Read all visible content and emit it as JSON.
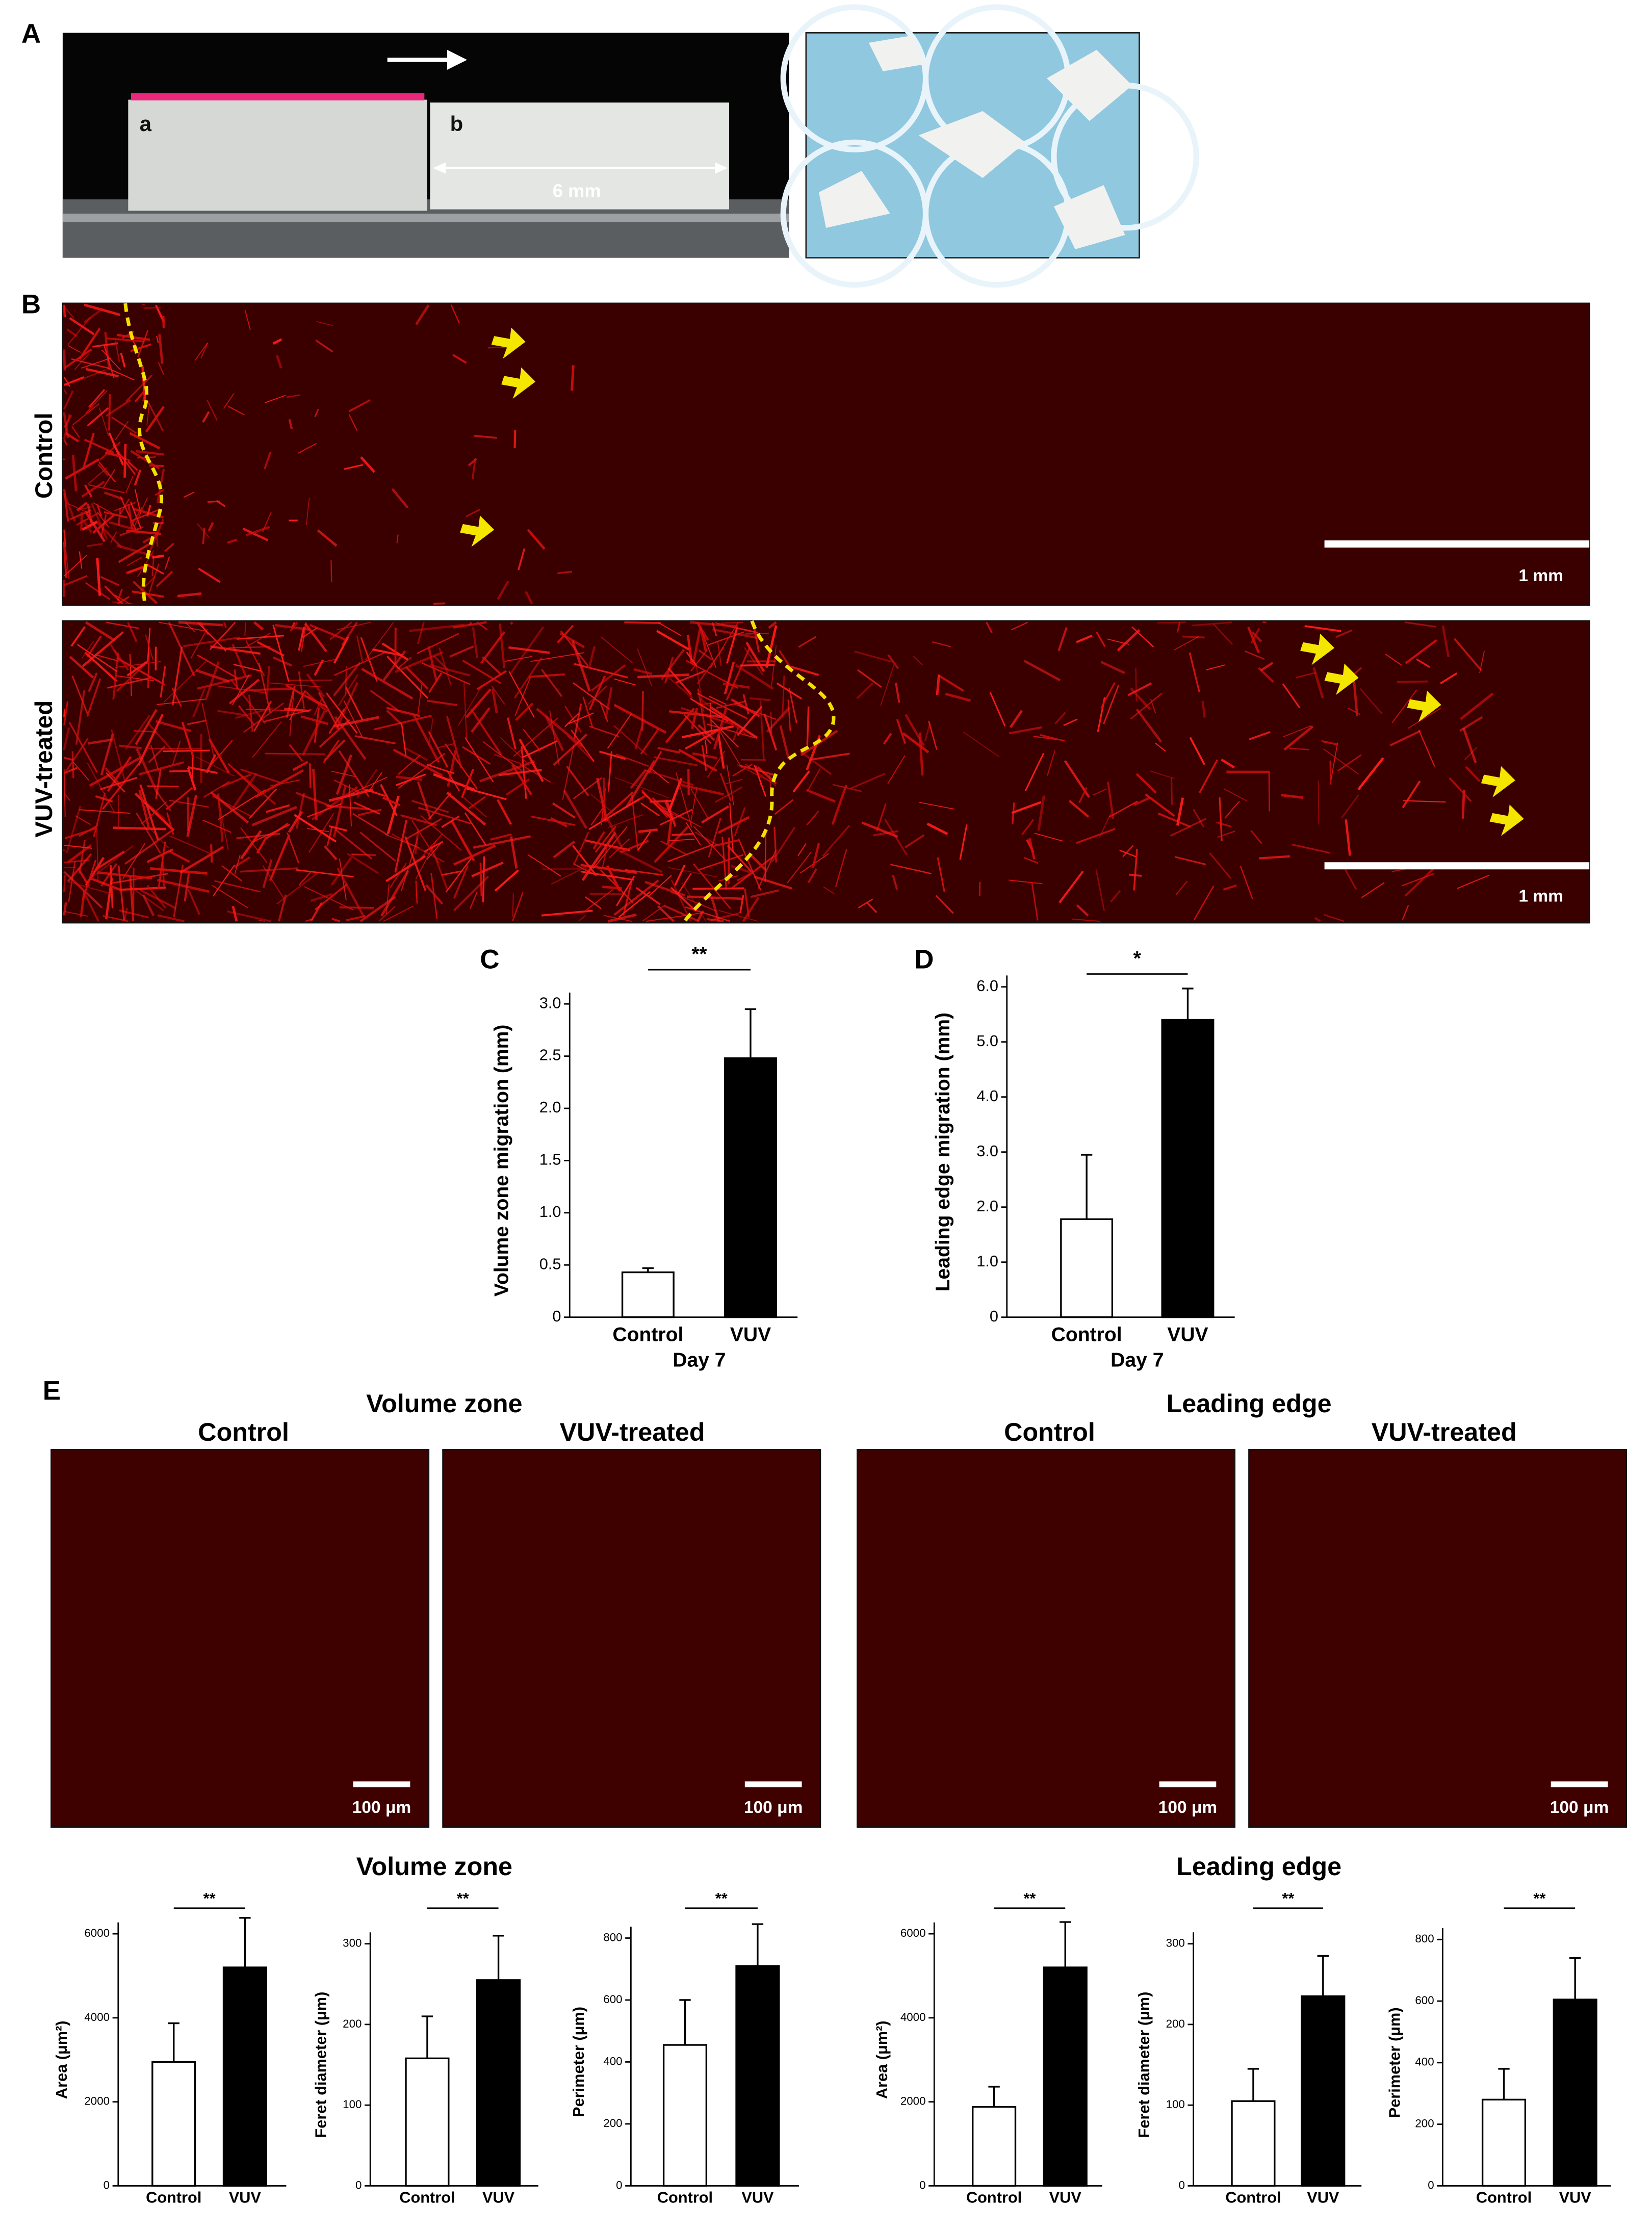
{
  "labels": {
    "A": "A",
    "B": "B",
    "C": "C",
    "D": "D",
    "E": "E"
  },
  "panel_a": {
    "block_a": "a",
    "block_b": "b",
    "gap": "6 mm"
  },
  "panel_b": {
    "rows": [
      {
        "label": "Control",
        "scale_bar": "1 mm"
      },
      {
        "label": "VUV-treated",
        "scale_bar": "1 mm"
      }
    ]
  },
  "panel_e": {
    "groups": [
      {
        "title": "Volume zone",
        "columns": [
          {
            "label": "Control",
            "scale_bar": "100 μm"
          },
          {
            "label": "VUV-treated",
            "scale_bar": "100 μm"
          }
        ]
      },
      {
        "title": "Leading edge",
        "columns": [
          {
            "label": "Control",
            "scale_bar": "100 μm"
          },
          {
            "label": "VUV-treated",
            "scale_bar": "100 μm"
          }
        ]
      }
    ],
    "chart_titles": [
      "Volume zone",
      "Leading edge"
    ]
  },
  "chart_data": [
    {
      "type": "bar",
      "ylabel": "Volume zone migration (mm)",
      "xlabel": "Day 7",
      "categories": [
        "Control",
        "VUV"
      ],
      "values": [
        0.43,
        2.48
      ],
      "errors": [
        0.04,
        0.47
      ],
      "colors": [
        "#ffffff",
        "#000000"
      ],
      "ylim": [
        0,
        3
      ],
      "yticks": [
        0,
        0.5,
        {
          "value": 1,
          "label": "1.0"
        },
        1.5,
        {
          "value": 2,
          "label": "2.0"
        },
        2.5,
        {
          "value": 3,
          "label": "3.0"
        }
      ],
      "significance": "**"
    },
    {
      "type": "bar",
      "ylabel": "Leading edge migration (mm)",
      "xlabel": "Day 7",
      "categories": [
        "Control",
        "VUV"
      ],
      "values": [
        1.78,
        5.4
      ],
      "errors": [
        1.17,
        0.57
      ],
      "colors": [
        "#ffffff",
        "#000000"
      ],
      "ylim": [
        0,
        6
      ],
      "yticks": [
        0,
        {
          "value": 1,
          "label": "1.0"
        },
        {
          "value": 2,
          "label": "2.0"
        },
        {
          "value": 3,
          "label": "3.0"
        },
        {
          "value": 4,
          "label": "4.0"
        },
        {
          "value": 5,
          "label": "5.0"
        },
        {
          "value": 6,
          "label": "6.0"
        }
      ],
      "significance": "*"
    },
    {
      "type": "bar",
      "ylabel": "Area (μm²)",
      "categories": [
        "Control",
        "VUV"
      ],
      "values": [
        2950,
        5200
      ],
      "errors": [
        920,
        1180
      ],
      "colors": [
        "#ffffff",
        "#000000"
      ],
      "ylim": [
        0,
        6000
      ],
      "yticks": [
        0,
        2000,
        4000,
        6000
      ],
      "significance": "**"
    },
    {
      "type": "bar",
      "ylabel": "Feret diameter (μm)",
      "categories": [
        "Control",
        "VUV"
      ],
      "values": [
        158,
        255
      ],
      "errors": [
        52,
        55
      ],
      "colors": [
        "#ffffff",
        "#000000"
      ],
      "ylim": [
        0,
        300
      ],
      "yticks": [
        0,
        100,
        200,
        300
      ],
      "significance": "**"
    },
    {
      "type": "bar",
      "ylabel": "Perimeter (μm)",
      "categories": [
        "Control",
        "VUV"
      ],
      "values": [
        455,
        710
      ],
      "errors": [
        145,
        135
      ],
      "colors": [
        "#ffffff",
        "#000000"
      ],
      "ylim": [
        0,
        800
      ],
      "yticks": [
        0,
        200,
        400,
        600,
        800
      ],
      "significance": "**"
    },
    {
      "type": "bar",
      "ylabel": "Area (μm²)",
      "categories": [
        "Control",
        "VUV"
      ],
      "values": [
        1880,
        5200
      ],
      "errors": [
        480,
        1080
      ],
      "colors": [
        "#ffffff",
        "#000000"
      ],
      "ylim": [
        0,
        6000
      ],
      "yticks": [
        0,
        2000,
        4000,
        6000
      ],
      "significance": "**"
    },
    {
      "type": "bar",
      "ylabel": "Feret diameter (μm)",
      "categories": [
        "Control",
        "VUV"
      ],
      "values": [
        105,
        235
      ],
      "errors": [
        40,
        50
      ],
      "colors": [
        "#ffffff",
        "#000000"
      ],
      "ylim": [
        0,
        300
      ],
      "yticks": [
        0,
        100,
        200,
        300
      ],
      "significance": "**"
    },
    {
      "type": "bar",
      "ylabel": "Perimeter (μm)",
      "categories": [
        "Control",
        "VUV"
      ],
      "values": [
        280,
        605
      ],
      "errors": [
        100,
        135
      ],
      "colors": [
        "#ffffff",
        "#000000"
      ],
      "ylim": [
        0,
        800
      ],
      "yticks": [
        0,
        200,
        400,
        600,
        800
      ],
      "significance": "**"
    }
  ]
}
